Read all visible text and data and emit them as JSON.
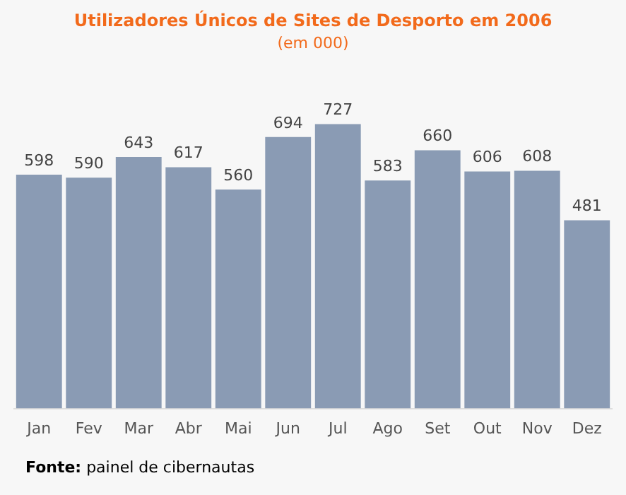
{
  "chart_data": {
    "type": "bar",
    "title": "Utilizadores Únicos de Sites de Desporto em 2006",
    "subtitle": "(em 000)",
    "categories": [
      "Jan",
      "Fev",
      "Mar",
      "Abr",
      "Mai",
      "Jun",
      "Jul",
      "Ago",
      "Set",
      "Out",
      "Nov",
      "Dez"
    ],
    "values": [
      598,
      590,
      643,
      617,
      560,
      694,
      727,
      583,
      660,
      606,
      608,
      481
    ],
    "color": "#8a9bb4",
    "data_labels": true,
    "grid": false,
    "legend": false,
    "tick_labels": "x",
    "annotations": [
      "Fonte: painel de cibernautas"
    ]
  }
}
